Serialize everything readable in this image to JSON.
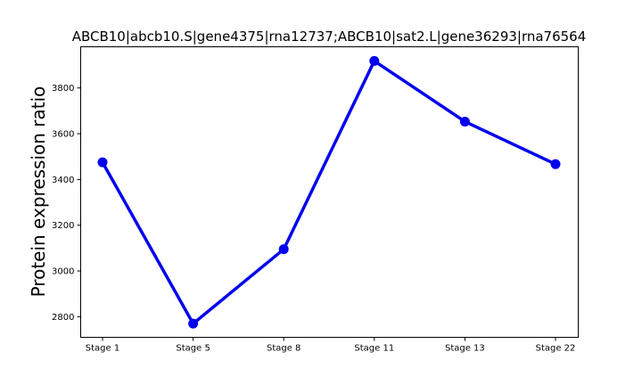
{
  "chart_data": {
    "type": "line",
    "title": "ABCB10|abcb10.S|gene4375|rna12737;ABCB10|sat2.L|gene36293|rna76564",
    "xlabel": "",
    "ylabel": "Protein expression ratio",
    "categories": [
      "Stage 1",
      "Stage 5",
      "Stage 8",
      "Stage 11",
      "Stage 13",
      "Stage 22"
    ],
    "series": [
      {
        "values": [
          3475,
          2770,
          3095,
          3918,
          3653,
          3467
        ],
        "color": "#0000ee"
      }
    ],
    "ylim": [
      2710,
      3980
    ],
    "yticks": [
      2800,
      3000,
      3200,
      3400,
      3600,
      3800
    ],
    "grid": false,
    "legend": "none"
  }
}
